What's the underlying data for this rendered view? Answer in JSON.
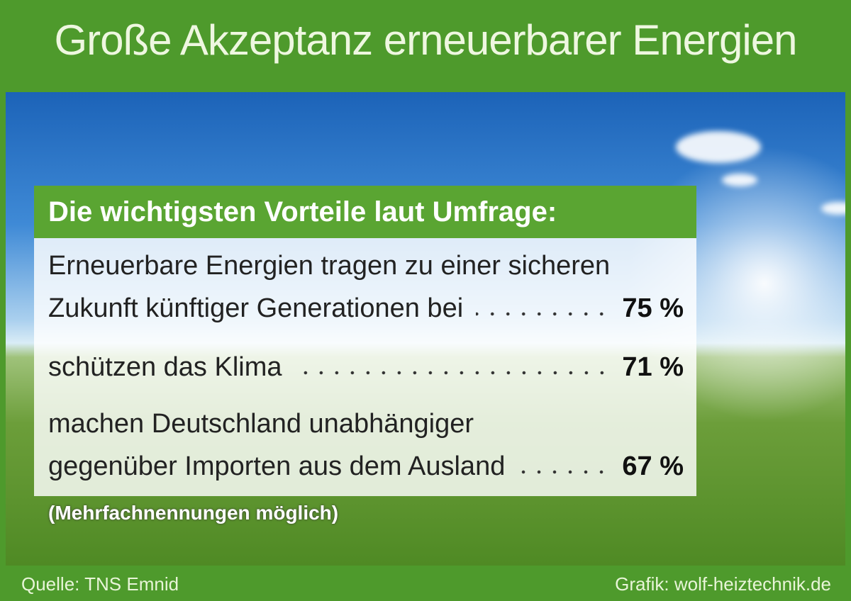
{
  "title": "Große Akzeptanz erneuerbarer Energien",
  "subtitle": "Die wichtigsten Vorteile laut Umfrage:",
  "items": [
    {
      "lines": [
        "Erneuerbare Energien tragen zu einer sicheren",
        "Zukunft künftiger Generationen bei"
      ],
      "value": "75 %"
    },
    {
      "lines": [
        "schützen das Klima"
      ],
      "value": "71 %"
    },
    {
      "lines": [
        "machen Deutschland unabhängiger",
        "gegenüber Importen aus dem Ausland"
      ],
      "value": "67 %"
    }
  ],
  "footnote": "(Mehrfachnennungen möglich)",
  "footer": {
    "source": "Quelle: TNS Emnid",
    "credit": "Grafik: wolf-heiztechnik.de"
  }
}
